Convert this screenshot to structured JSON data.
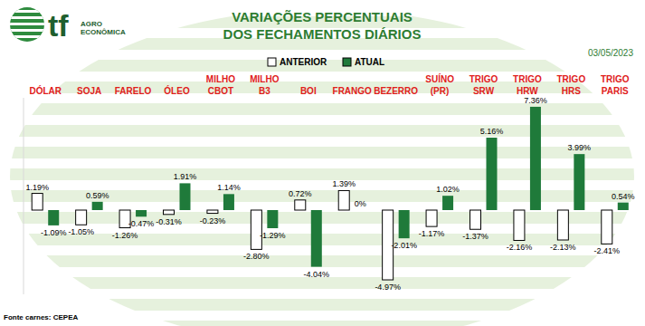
{
  "chart_data": {
    "type": "bar",
    "title": "VARIAÇÕES PERCENTUAIS\nDOS FECHAMENTOS DIÁRIOS",
    "annotations": [
      "03/05/2023",
      "Fonte carnes: CEPEA"
    ],
    "logo": [
      "tf",
      "AGRO",
      "ECONÔMICA"
    ],
    "categories": [
      "DÓLAR",
      "SOJA",
      "FARELO",
      "ÓLEO",
      "MILHO CBOT",
      "MILHO B3",
      "BOI",
      "FRANGO",
      "BEZERRO",
      "SUÍNO (PR)",
      "TRIGO SRW",
      "TRIGO HRW",
      "TRIGO HRS",
      "TRIGO PARIS"
    ],
    "series": [
      {
        "name": "ANTERIOR",
        "color": "#ffffff",
        "values": [
          1.19,
          -1.05,
          -1.26,
          -0.31,
          -0.23,
          -2.8,
          0.72,
          1.39,
          -4.97,
          -1.17,
          -1.37,
          -2.16,
          -2.13,
          -2.41
        ],
        "value_labels": [
          "1.19%",
          "-1.05%",
          "-1.26%",
          "-0.31%",
          "-0.23%",
          "-2.80%",
          "0.72%",
          "1.39%",
          "-4.97%",
          "-1.17%",
          "-1.37%",
          "-2.16%",
          "-2.13%",
          "-2.41%"
        ]
      },
      {
        "name": "ATUAL",
        "color": "#1f7a3a",
        "values": [
          -1.09,
          0.59,
          -0.47,
          1.91,
          1.14,
          -1.29,
          -4.04,
          0,
          -2.01,
          1.02,
          5.16,
          7.36,
          3.99,
          0.54
        ],
        "value_labels": [
          "-1.09%",
          "0.59%",
          "-0.47%",
          "1.91%",
          "1.14%",
          "-1.29%",
          "-4.04%",
          "0%",
          "-2.01%",
          "1.02%",
          "5.16%",
          "7.36%",
          "3.99%",
          "0.54%"
        ]
      }
    ],
    "ylim": [
      -6,
      8
    ],
    "grid": false,
    "legend": "top",
    "data_labels": true,
    "tick_labels": "x"
  }
}
